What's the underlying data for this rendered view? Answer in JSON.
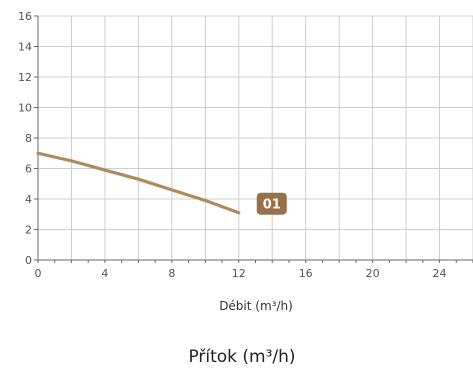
{
  "chart_data": {
    "type": "line",
    "x_ticks": [
      0,
      4,
      8,
      12,
      16,
      20,
      24
    ],
    "y_ticks": [
      0,
      2,
      4,
      6,
      8,
      10,
      12,
      14,
      16
    ],
    "xlim": [
      0,
      26
    ],
    "ylim": [
      0,
      16
    ],
    "grid": true,
    "xlabel": "Débit (m³/h)",
    "caption": "Přítok (m³/h)",
    "colors": {
      "line": "#b08a5e",
      "badge": "#9a7048",
      "grid": "#cfcfcf",
      "axis": "#6a6a6a"
    },
    "series": [
      {
        "label": "01",
        "x": [
          0,
          2,
          4,
          6,
          8,
          10,
          12
        ],
        "y": [
          7.0,
          6.5,
          5.9,
          5.3,
          4.6,
          3.9,
          3.1
        ]
      }
    ]
  }
}
